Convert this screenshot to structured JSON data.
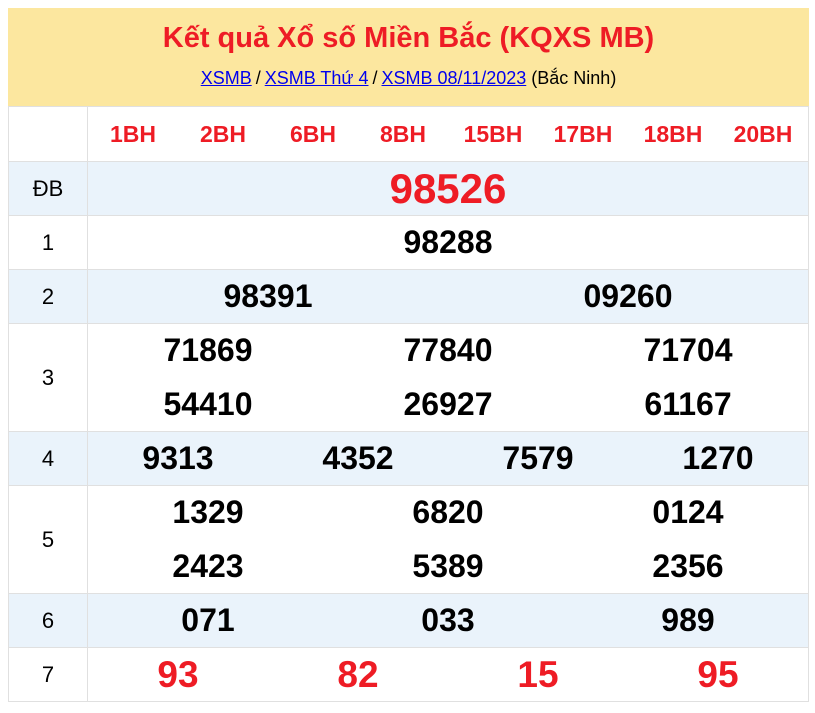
{
  "banner": {
    "title": "Kết quả Xổ số Miền Bắc (KQXS MB)",
    "breadcrumb": {
      "link1": "XSMB",
      "sep1": "/",
      "link2": "XSMB Thứ 4",
      "sep2": "/",
      "link3": "XSMB 08/11/2023",
      "suffix": "(Bắc Ninh)"
    }
  },
  "table": {
    "column_headers": [
      "1BH",
      "2BH",
      "6BH",
      "8BH",
      "15BH",
      "17BH",
      "18BH",
      "20BH"
    ],
    "rows": [
      {
        "label": "ĐB",
        "lines": [
          [
            "98526"
          ]
        ]
      },
      {
        "label": "1",
        "lines": [
          [
            "98288"
          ]
        ]
      },
      {
        "label": "2",
        "lines": [
          [
            "98391",
            "09260"
          ]
        ]
      },
      {
        "label": "3",
        "lines": [
          [
            "71869",
            "77840",
            "71704"
          ],
          [
            "54410",
            "26927",
            "61167"
          ]
        ]
      },
      {
        "label": "4",
        "lines": [
          [
            "9313",
            "4352",
            "7579",
            "1270"
          ]
        ]
      },
      {
        "label": "5",
        "lines": [
          [
            "1329",
            "6820",
            "0124"
          ],
          [
            "2423",
            "5389",
            "2356"
          ]
        ]
      },
      {
        "label": "6",
        "lines": [
          [
            "071",
            "033",
            "989"
          ]
        ]
      },
      {
        "label": "7",
        "lines": [
          [
            "93",
            "82",
            "15",
            "95"
          ]
        ]
      }
    ]
  },
  "colors": {
    "banner_background": "#fce79f",
    "accent_red": "#ee1c25",
    "link_blue": "#0000ee",
    "striped_row_background": "#eaf3fb",
    "border": "#e0e0e0"
  }
}
